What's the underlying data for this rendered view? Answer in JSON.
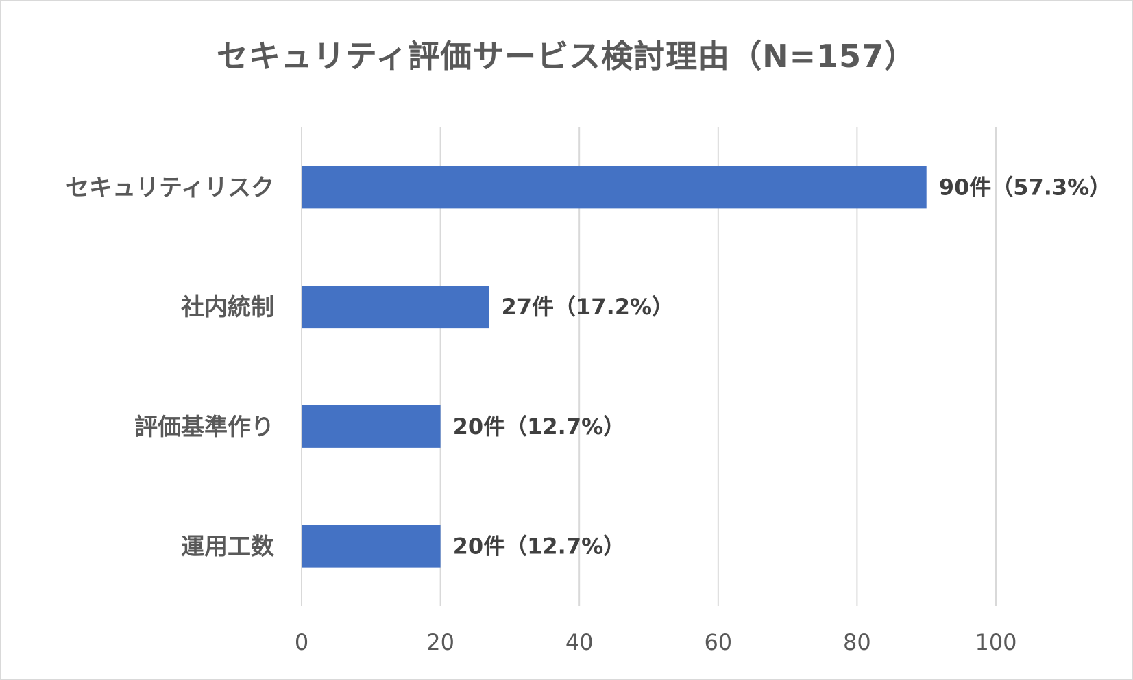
{
  "chart_data": {
    "type": "bar",
    "orientation": "horizontal",
    "title": "セキュリティ評価サービス検討理由（N=157）",
    "categories": [
      "セキュリティリスク",
      "社内統制",
      "評価基準作り",
      "運用工数"
    ],
    "values": [
      90,
      27,
      20,
      20
    ],
    "data_labels": [
      "90件（57.3%）",
      "27件（17.2%）",
      "20件（12.7%）",
      "20件（12.7%）"
    ],
    "xlim": [
      0,
      100
    ],
    "xticks": [
      0,
      20,
      40,
      60,
      80,
      100
    ],
    "xlabel": "",
    "ylabel": "",
    "grid": true,
    "legend": "none",
    "bar_color": "#4472C4",
    "grid_color": "#d9d9d9"
  }
}
